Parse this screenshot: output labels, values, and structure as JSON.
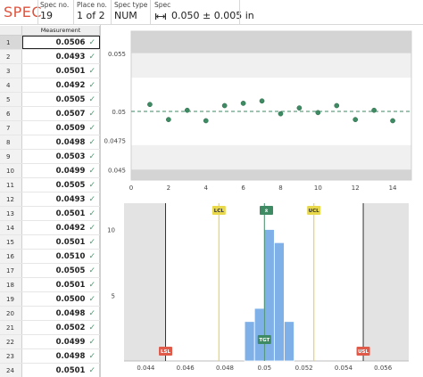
{
  "header": {
    "brand": "SPEC",
    "spec_no": {
      "caption": "Spec no.",
      "value": "19"
    },
    "place_no": {
      "caption": "Place no.",
      "value": "1 of 2"
    },
    "spec_type": {
      "caption": "Spec type",
      "value": "NUM"
    },
    "spec": {
      "caption": "Spec",
      "value": "0.050 ± 0.005  in",
      "icon": "range-icon"
    }
  },
  "table": {
    "column_header": "Measurement",
    "check_icon": "✓",
    "selected_row": 1,
    "rows": [
      {
        "index": "1",
        "value": "0.0506"
      },
      {
        "index": "2",
        "value": "0.0493"
      },
      {
        "index": "3",
        "value": "0.0501"
      },
      {
        "index": "4",
        "value": "0.0492"
      },
      {
        "index": "5",
        "value": "0.0505"
      },
      {
        "index": "6",
        "value": "0.0507"
      },
      {
        "index": "7",
        "value": "0.0509"
      },
      {
        "index": "8",
        "value": "0.0498"
      },
      {
        "index": "9",
        "value": "0.0503"
      },
      {
        "index": "10",
        "value": "0.0499"
      },
      {
        "index": "11",
        "value": "0.0505"
      },
      {
        "index": "12",
        "value": "0.0493"
      },
      {
        "index": "13",
        "value": "0.0501"
      },
      {
        "index": "14",
        "value": "0.0492"
      },
      {
        "index": "15",
        "value": "0.0501"
      },
      {
        "index": "16",
        "value": "0.0510"
      },
      {
        "index": "17",
        "value": "0.0505"
      },
      {
        "index": "18",
        "value": "0.0501"
      },
      {
        "index": "19",
        "value": "0.0500"
      },
      {
        "index": "20",
        "value": "0.0498"
      },
      {
        "index": "21",
        "value": "0.0502"
      },
      {
        "index": "22",
        "value": "0.0499"
      },
      {
        "index": "23",
        "value": "0.0498"
      },
      {
        "index": "24",
        "value": "0.0501"
      }
    ]
  },
  "colors": {
    "brand": "#e0533d",
    "check": "#4a9a6b",
    "point": "#3e8a63",
    "bar": "#7fb0e8",
    "control_limit": "#e8d84a",
    "spec_limit": "#e05a4a",
    "target": "#3e8a63"
  },
  "chart_data": [
    {
      "type": "scatter",
      "x": [
        1,
        2,
        3,
        4,
        5,
        6,
        7,
        8,
        9,
        10,
        11,
        12,
        13,
        14
      ],
      "y": [
        0.0506,
        0.0493,
        0.0501,
        0.0492,
        0.0505,
        0.0507,
        0.0509,
        0.0498,
        0.0503,
        0.0499,
        0.0505,
        0.0493,
        0.0501,
        0.0492
      ],
      "xlim": [
        0,
        15
      ],
      "ylim": [
        0.0441,
        0.0569
      ],
      "xticks": [
        "0",
        "2",
        "4",
        "6",
        "8",
        "10",
        "12",
        "14"
      ],
      "yticks": [
        "0.055",
        "0.05",
        "0.0475",
        "0.045"
      ],
      "center_line": 0.05,
      "bands_beyond_spec": [
        0.045,
        0.055
      ],
      "grid": false
    },
    {
      "type": "bar",
      "x_ticks": [
        "0.044",
        "0.046",
        "0.048",
        "0.05",
        "0.052",
        "0.054",
        "0.056"
      ],
      "xlim": [
        0.0429,
        0.0573
      ],
      "y_ticks": [
        "5",
        "10"
      ],
      "ylim": [
        0,
        12
      ],
      "bins": [
        {
          "from": 0.049,
          "to": 0.0495,
          "count": 3
        },
        {
          "from": 0.0495,
          "to": 0.05,
          "count": 4
        },
        {
          "from": 0.05,
          "to": 0.0505,
          "count": 10
        },
        {
          "from": 0.0505,
          "to": 0.051,
          "count": 9
        },
        {
          "from": 0.051,
          "to": 0.0515,
          "count": 3
        }
      ],
      "markers": [
        {
          "label": "LSL",
          "value": 0.045,
          "kind": "spec",
          "position": "bottom"
        },
        {
          "label": "USL",
          "value": 0.055,
          "kind": "spec",
          "position": "bottom"
        },
        {
          "label": "LCL",
          "value": 0.0477,
          "kind": "control",
          "position": "top"
        },
        {
          "label": "UCL",
          "value": 0.0525,
          "kind": "control",
          "position": "top"
        },
        {
          "label": "x̄",
          "value": 0.0501,
          "kind": "mean",
          "position": "top"
        },
        {
          "label": "TGT",
          "value": 0.05,
          "kind": "target",
          "position": "bottom"
        }
      ]
    }
  ]
}
